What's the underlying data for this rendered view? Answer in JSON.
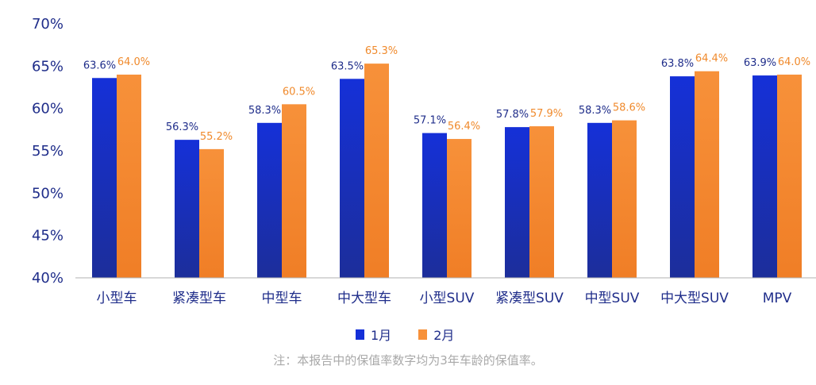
{
  "chart_data": {
    "type": "bar",
    "categories": [
      "小型车",
      "紧凑型车",
      "中型车",
      "中大型车",
      "小型SUV",
      "紧凑型SUV",
      "中型SUV",
      "中大型SUV",
      "MPV"
    ],
    "series": [
      {
        "name": "1月",
        "values": [
          63.6,
          56.3,
          58.3,
          63.5,
          57.1,
          57.8,
          58.3,
          63.8,
          63.9
        ],
        "labels": [
          "63.6%",
          "56.3%",
          "58.3%",
          "63.5%",
          "57.1%",
          "57.8%",
          "58.3%",
          "63.8%",
          "63.9%"
        ],
        "color_top": "#1530d8",
        "color_bottom": "#1c2e9a"
      },
      {
        "name": "2月",
        "values": [
          64.0,
          55.2,
          60.5,
          65.3,
          56.4,
          57.9,
          58.6,
          64.4,
          64.0
        ],
        "labels": [
          "64.0%",
          "55.2%",
          "60.5%",
          "65.3%",
          "56.4%",
          "57.9%",
          "58.6%",
          "64.4%",
          "64.0%"
        ],
        "color_top": "#f7913a",
        "color_bottom": "#f07e26"
      }
    ],
    "ylim": [
      40,
      70
    ],
    "yticks": [
      40,
      45,
      50,
      55,
      60,
      65,
      70
    ],
    "ytick_labels": [
      "40%",
      "45%",
      "50%",
      "55%",
      "60%",
      "65%",
      "70%"
    ],
    "legend_position": "bottom-center",
    "grid": false
  },
  "note": "注：本报告中的保值率数字均为3年车龄的保值率。"
}
